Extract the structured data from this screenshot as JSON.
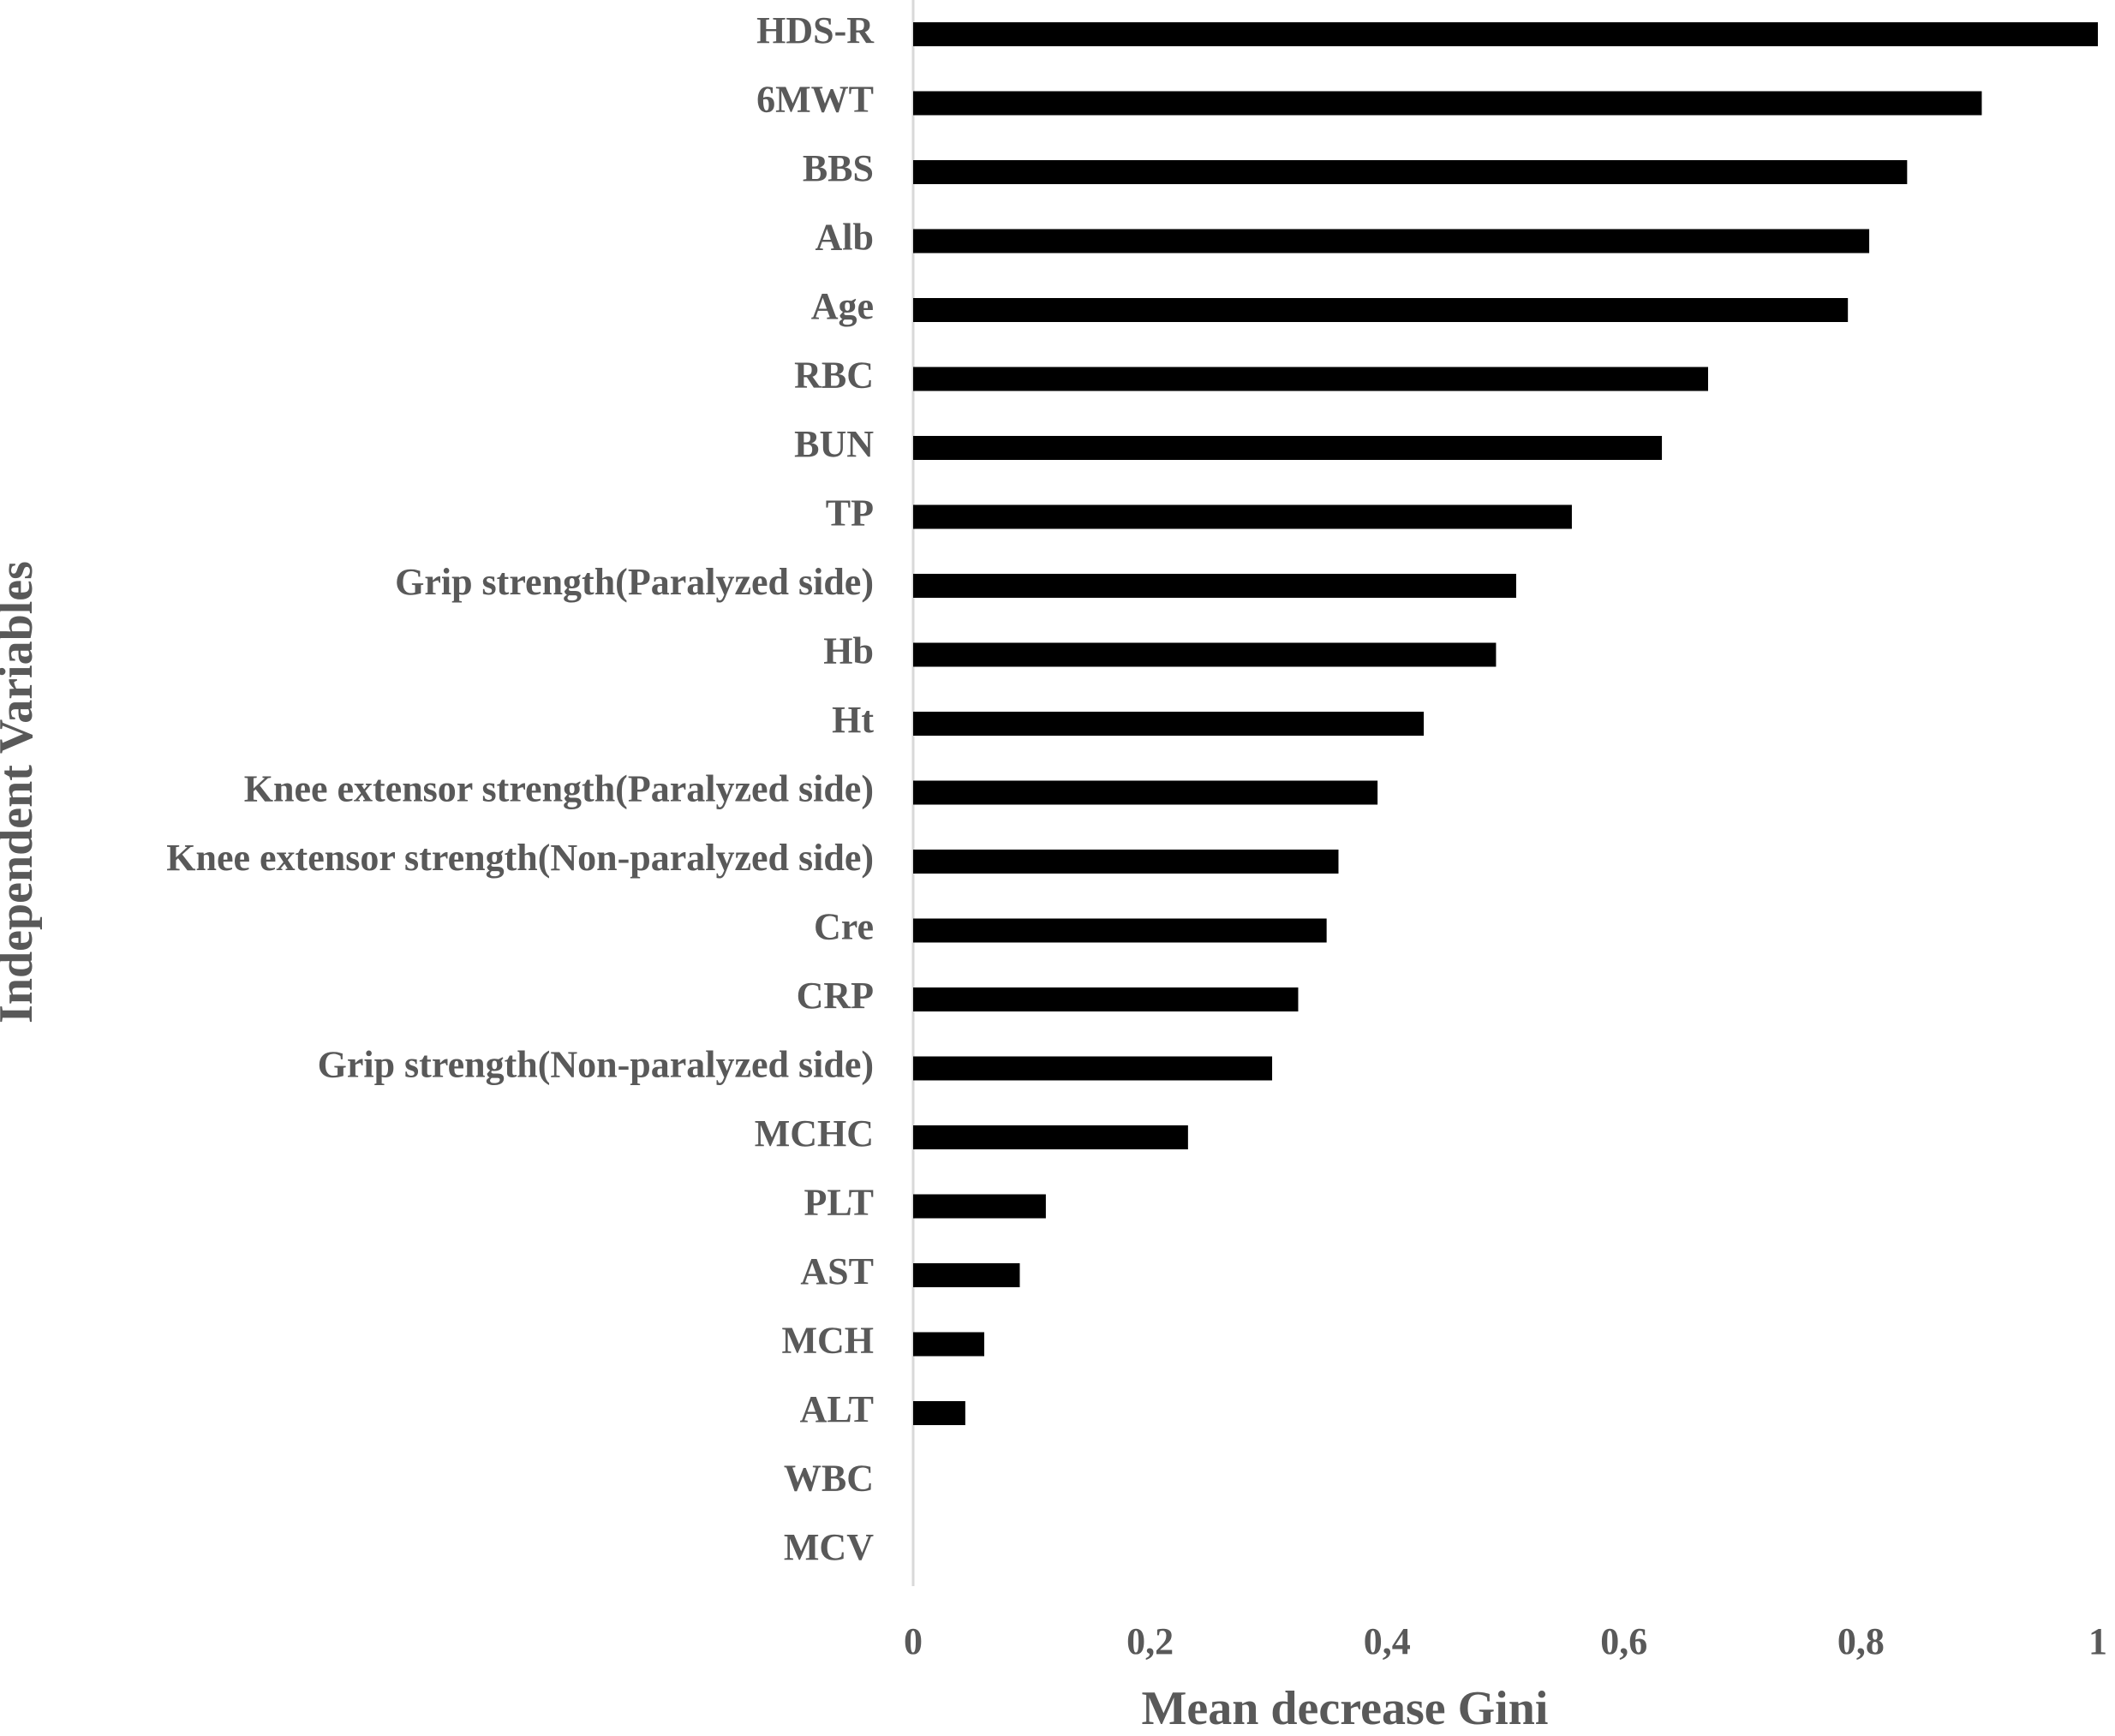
{
  "chart_data": {
    "type": "hbar",
    "x_label": "Mean decrease Gini",
    "y_label": "Independent Variables",
    "categories": [
      "HDS-R",
      "6MWT",
      "BBS",
      "Alb",
      "Age",
      "RBC",
      "BUN",
      "TP",
      "Grip strength(Paralyzed side)",
      "Hb",
      "Ht",
      "Knee extensor strength(Paralyzed side)",
      "Knee extensor strength(Non-paralyzed side)",
      "Cre",
      "CRP",
      "Grip strength(Non-paralyzed side)",
      "MCHC",
      "PLT",
      "AST",
      "MCH",
      "ALT",
      "WBC",
      "MCV"
    ],
    "values": [
      1.0,
      0.902,
      0.839,
      0.807,
      0.789,
      0.671,
      0.632,
      0.556,
      0.509,
      0.492,
      0.431,
      0.392,
      0.359,
      0.349,
      0.325,
      0.303,
      0.232,
      0.112,
      0.09,
      0.06,
      0.044,
      0,
      0
    ],
    "color": "#000000",
    "xlim": [
      0,
      1
    ],
    "xticks": [
      0,
      {
        "value": 0.2,
        "label": "0,2"
      },
      {
        "value": 0.4,
        "label": "0,4"
      },
      {
        "value": 0.6,
        "label": "0,6"
      },
      {
        "value": 0.8,
        "label": "0,8"
      },
      1
    ],
    "grid": false
  }
}
